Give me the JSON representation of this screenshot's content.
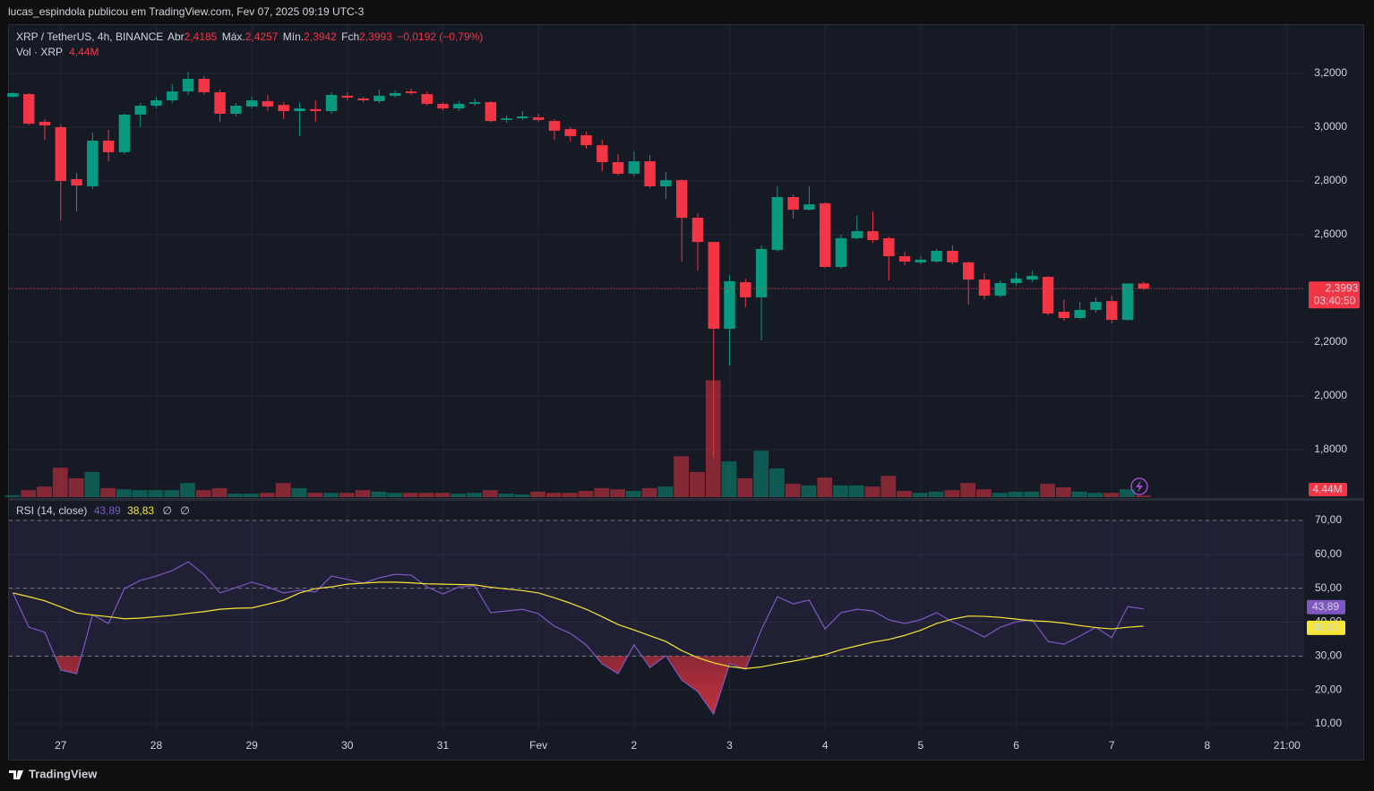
{
  "header": {
    "publisher": "lucas_espindola publicou em TradingView.com, Fev 07, 2025 09:19 UTC-3"
  },
  "footer": {
    "brand": "TradingView"
  },
  "chart_data": [
    {
      "type": "candlestick",
      "legend": {
        "symbol": "XRP / TetherUS, 4h, BINANCE",
        "open_label": "Abr",
        "open_value": "2,4185",
        "high_label": "Máx.",
        "high_value": "2,4257",
        "low_label": "Mín.",
        "low_value": "2,3942",
        "close_label": "Fch",
        "close_value": "2,3993",
        "change": "−0,0192 (−0,79%)",
        "volume_label": "Vol · XRP"
      },
      "up_color": "#089981",
      "down_color": "#f23645",
      "open": [
        3.113,
        3.123,
        3.02,
        3.0,
        2.807,
        2.78,
        2.95,
        2.907,
        3.047,
        3.08,
        3.1,
        3.133,
        3.18,
        3.13,
        3.05,
        3.077,
        3.097,
        3.083,
        3.06,
        3.067,
        3.06,
        3.117,
        3.107,
        3.097,
        3.117,
        3.133,
        3.123,
        3.087,
        3.07,
        3.087,
        3.093,
        3.027,
        3.033,
        3.037,
        3.023,
        2.993,
        2.97,
        2.933,
        2.87,
        2.827,
        2.873,
        2.78,
        2.803,
        2.663,
        2.573,
        2.25,
        2.423,
        2.367,
        2.543,
        2.74,
        2.693,
        2.717,
        2.48,
        2.587,
        2.613,
        2.587,
        2.52,
        2.497,
        2.5,
        2.54,
        2.497,
        2.433,
        2.373,
        2.42,
        2.433,
        2.443,
        2.313,
        2.29,
        2.32,
        2.353,
        2.283,
        2.4185
      ],
      "high": [
        3.13,
        3.127,
        3.03,
        3.01,
        2.83,
        2.98,
        2.99,
        3.05,
        3.09,
        3.113,
        3.16,
        3.207,
        3.19,
        3.14,
        3.09,
        3.113,
        3.12,
        3.093,
        3.093,
        3.1,
        3.13,
        3.13,
        3.113,
        3.14,
        3.137,
        3.143,
        3.133,
        3.093,
        3.097,
        3.107,
        3.097,
        3.043,
        3.06,
        3.05,
        3.03,
        3.0,
        2.983,
        2.953,
        2.9,
        2.91,
        2.897,
        2.833,
        2.807,
        2.68,
        2.573,
        2.45,
        2.437,
        2.56,
        2.78,
        2.75,
        2.78,
        2.72,
        2.6,
        2.67,
        2.687,
        2.593,
        2.537,
        2.52,
        2.547,
        2.56,
        2.5,
        2.457,
        2.43,
        2.46,
        2.467,
        2.447,
        2.36,
        2.35,
        2.367,
        2.373,
        2.42,
        2.4257
      ],
      "low": [
        3.11,
        3.007,
        2.953,
        2.653,
        2.687,
        2.77,
        2.873,
        2.9,
        3.0,
        3.07,
        3.09,
        3.12,
        3.12,
        3.02,
        3.04,
        3.07,
        3.06,
        3.03,
        2.967,
        3.02,
        3.05,
        3.1,
        3.093,
        3.09,
        3.11,
        3.12,
        3.08,
        3.063,
        3.06,
        3.08,
        3.017,
        3.017,
        3.027,
        3.02,
        2.953,
        2.947,
        2.92,
        2.837,
        2.82,
        2.817,
        2.773,
        2.733,
        2.5,
        2.467,
        1.77,
        2.113,
        2.33,
        2.207,
        2.537,
        2.66,
        2.69,
        2.477,
        2.473,
        2.583,
        2.57,
        2.43,
        2.487,
        2.49,
        2.497,
        2.49,
        2.34,
        2.36,
        2.367,
        2.41,
        2.423,
        2.3,
        2.28,
        2.287,
        2.31,
        2.27,
        2.28,
        2.3942
      ],
      "close": [
        3.127,
        3.013,
        3.007,
        2.8,
        2.783,
        2.95,
        2.907,
        3.047,
        3.08,
        3.1,
        3.133,
        3.18,
        3.13,
        3.05,
        3.08,
        3.1,
        3.077,
        3.06,
        3.07,
        3.06,
        3.12,
        3.11,
        3.1,
        3.117,
        3.127,
        3.127,
        3.087,
        3.07,
        3.087,
        3.093,
        3.023,
        3.033,
        3.04,
        3.027,
        2.987,
        2.967,
        2.933,
        2.87,
        2.827,
        2.873,
        2.78,
        2.803,
        2.663,
        2.573,
        2.25,
        2.427,
        2.367,
        2.547,
        2.74,
        2.693,
        2.713,
        2.48,
        2.587,
        2.613,
        2.58,
        2.52,
        2.5,
        2.507,
        2.54,
        2.497,
        2.433,
        2.373,
        2.42,
        2.437,
        2.447,
        2.307,
        2.29,
        2.32,
        2.35,
        2.283,
        2.4185,
        2.3993
      ],
      "volume": [
        5,
        18,
        27,
        75,
        48,
        64,
        23,
        20,
        18,
        18,
        18,
        36,
        18,
        23,
        9,
        9,
        11,
        36,
        23,
        11,
        11,
        11,
        18,
        14,
        11,
        11,
        11,
        11,
        9,
        11,
        18,
        9,
        7,
        14,
        11,
        11,
        16,
        23,
        20,
        16,
        23,
        27,
        104,
        64,
        297,
        91,
        48,
        118,
        73,
        34,
        30,
        50,
        30,
        30,
        27,
        54,
        16,
        11,
        14,
        18,
        36,
        20,
        11,
        14,
        14,
        34,
        25,
        14,
        11,
        11,
        20,
        4.44
      ],
      "volume_last_label": "4,44M",
      "volume_lim": [
        0,
        1200
      ],
      "xlim": [
        -0.25,
        81.08
      ],
      "xticks": [
        {
          "value": 3,
          "label": "27"
        },
        {
          "value": 9,
          "label": "28"
        },
        {
          "value": 15,
          "label": "29"
        },
        {
          "value": 21,
          "label": "30"
        },
        {
          "value": 27,
          "label": "31"
        },
        {
          "value": 33,
          "label": "Fev"
        },
        {
          "value": 39,
          "label": "2"
        },
        {
          "value": 45,
          "label": "3"
        },
        {
          "value": 51,
          "label": "4"
        },
        {
          "value": 57,
          "label": "5"
        },
        {
          "value": 63,
          "label": "6"
        },
        {
          "value": 69,
          "label": "7"
        },
        {
          "value": 75,
          "label": "8"
        },
        {
          "value": 80,
          "label": "21:00"
        }
      ],
      "ylim": [
        1.6233,
        3.38
      ],
      "yticks": [
        {
          "value": 1.8,
          "label": "1,8000"
        },
        {
          "value": 2.0,
          "label": "2,0000"
        },
        {
          "value": 2.2,
          "label": "2,2000"
        },
        {
          "value": 2.4,
          "label": "2,4000"
        },
        {
          "value": 2.6,
          "label": "2,6000"
        },
        {
          "value": 2.8,
          "label": "2,8000"
        },
        {
          "value": 3.0,
          "label": "3,0000"
        },
        {
          "value": 3.2,
          "label": "3,2000"
        }
      ],
      "last_price": {
        "value": 2.3993,
        "label": "2,3993"
      },
      "countdown": "03:40:50",
      "grid": true
    },
    {
      "type": "line",
      "legend": {
        "title": "RSI (14, close)",
        "extras": [
          "∅",
          "∅"
        ]
      },
      "series": [
        {
          "color": "#7e57c2",
          "last_label": "43,89",
          "values": [
            48.6,
            38.5,
            37,
            25.9,
            24.8,
            42.2,
            39.6,
            49.9,
            52.3,
            53.6,
            55.2,
            57.8,
            54.1,
            48.6,
            50.2,
            51.8,
            50.4,
            48.6,
            49.4,
            48.9,
            53.6,
            52.6,
            51.5,
            53.1,
            54.1,
            53.9,
            50.4,
            48.3,
            50.4,
            50.7,
            42.8,
            43.3,
            43.8,
            42.5,
            38.8,
            36.7,
            33.3,
            27.7,
            24.8,
            33.3,
            26.6,
            30.1,
            22.9,
            19.5,
            12.9,
            27.7,
            26.1,
            37.8,
            47.5,
            45.4,
            46.5,
            38.0,
            42.8,
            43.8,
            43.3,
            40.7,
            39.6,
            40.7,
            42.8,
            40.1,
            38.0,
            35.6,
            38.5,
            40.1,
            40.7,
            34.3,
            33.5,
            35.9,
            38.5,
            35.4,
            44.6,
            43.89
          ]
        },
        {
          "color": "#f7e733",
          "last_label": "38,83",
          "values": [
            48.6,
            47.5,
            46.3,
            44.5,
            42.7,
            42.1,
            41.6,
            41.0,
            41.2,
            41.6,
            42.0,
            42.6,
            43.1,
            43.8,
            44.1,
            44.2,
            45.3,
            46.5,
            48.6,
            49.9,
            50.4,
            51.2,
            51.5,
            51.8,
            51.8,
            51.6,
            51.3,
            51.2,
            51.1,
            51.0,
            50.3,
            49.8,
            49.3,
            48.6,
            47.2,
            45.6,
            43.8,
            41.6,
            39.3,
            37.7,
            36.0,
            34.3,
            31.6,
            29.5,
            28.0,
            26.9,
            26.3,
            26.8,
            27.7,
            28.5,
            29.4,
            30.4,
            31.9,
            33.0,
            34.1,
            34.9,
            36.1,
            37.6,
            39.6,
            40.9,
            41.8,
            41.7,
            41.4,
            40.9,
            40.4,
            40.2,
            39.7,
            39.0,
            38.4,
            38.0,
            38.5,
            38.83
          ]
        }
      ],
      "ylim": [
        7.36,
        75.55
      ],
      "yticks": [
        {
          "value": 10,
          "label": "10,00"
        },
        {
          "value": 20,
          "label": "20,00"
        },
        {
          "value": 30,
          "label": "30,00"
        },
        {
          "value": 40,
          "label": "40,00"
        },
        {
          "value": 50,
          "label": "50,00"
        },
        {
          "value": 60,
          "label": "60,00"
        },
        {
          "value": 70,
          "label": "70,00"
        }
      ],
      "levels": [
        70,
        50,
        30
      ],
      "band": [
        30,
        70
      ],
      "oversold_color": "#f23645"
    }
  ]
}
